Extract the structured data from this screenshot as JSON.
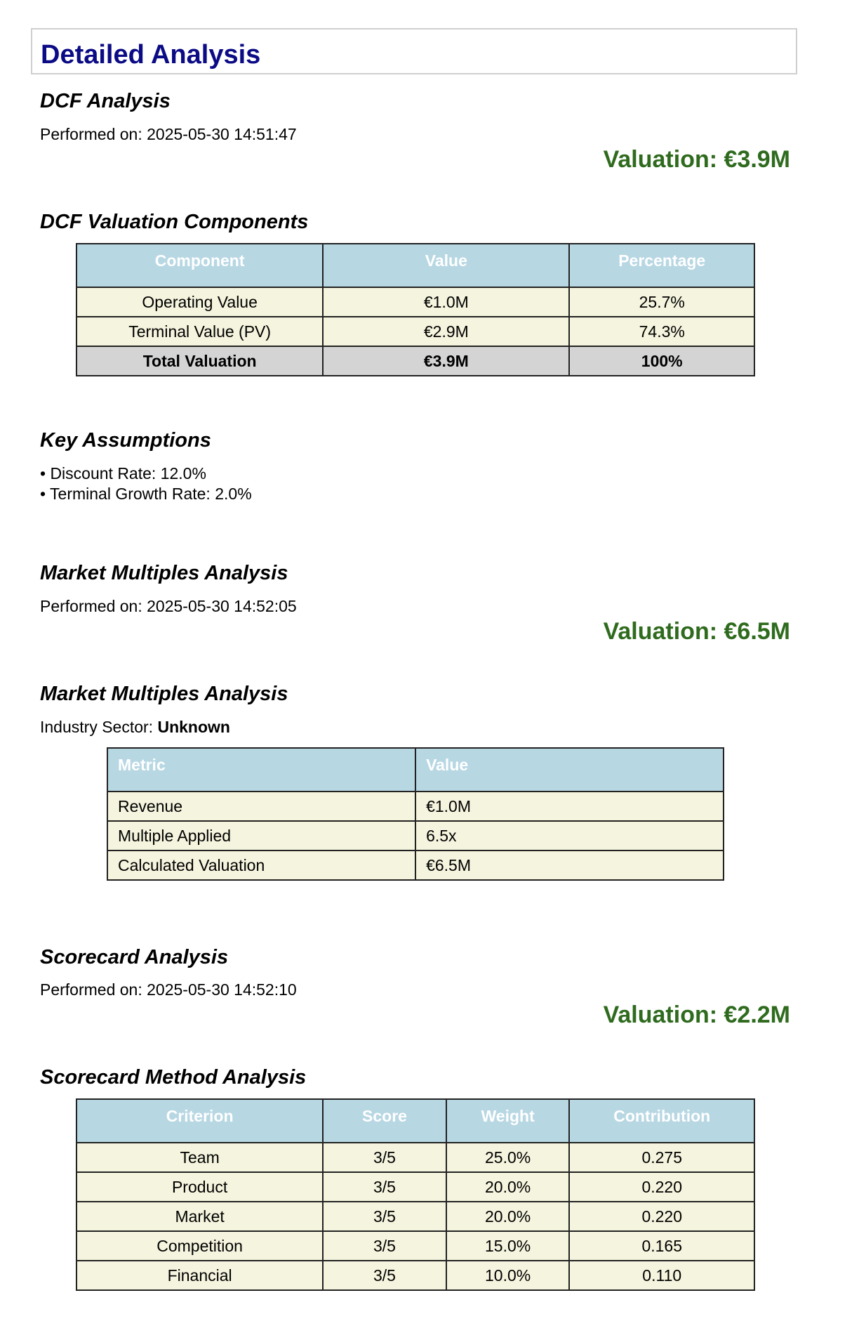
{
  "title": "Detailed Analysis",
  "dcf": {
    "heading": "DCF Analysis",
    "performed": "Performed on: 2025-05-30 14:51:47",
    "valuation": "Valuation: €3.9M",
    "components_heading": "DCF Valuation Components",
    "table": {
      "headers": [
        "Component",
        "Value",
        "Percentage"
      ],
      "rows": [
        [
          "Operating Value",
          "€1.0M",
          "25.7%"
        ],
        [
          "Terminal Value (PV)",
          "€2.9M",
          "74.3%"
        ]
      ],
      "total": [
        "Total Valuation",
        "€3.9M",
        "100%"
      ]
    },
    "assumptions_heading": "Key Assumptions",
    "assumptions": [
      "• Discount Rate: 12.0%",
      "• Terminal Growth Rate: 2.0%"
    ]
  },
  "multiples": {
    "heading": "Market Multiples Analysis",
    "performed": "Performed on: 2025-05-30 14:52:05",
    "valuation": "Valuation: €6.5M",
    "sub_heading": "Market Multiples Analysis",
    "sector_label": "Industry Sector: ",
    "sector_value": "Unknown",
    "table": {
      "headers": [
        "Metric",
        "Value"
      ],
      "rows": [
        [
          "Revenue",
          "€1.0M"
        ],
        [
          "Multiple Applied",
          "6.5x"
        ],
        [
          "Calculated Valuation",
          "€6.5M"
        ]
      ]
    }
  },
  "scorecard": {
    "heading": "Scorecard Analysis",
    "performed": "Performed on: 2025-05-30 14:52:10",
    "valuation": "Valuation: €2.2M",
    "method_heading": "Scorecard Method Analysis",
    "table": {
      "headers": [
        "Criterion",
        "Score",
        "Weight",
        "Contribution"
      ],
      "rows": [
        [
          "Team",
          "3/5",
          "25.0%",
          "0.275"
        ],
        [
          "Product",
          "3/5",
          "20.0%",
          "0.220"
        ],
        [
          "Market",
          "3/5",
          "20.0%",
          "0.220"
        ],
        [
          "Competition",
          "3/5",
          "15.0%",
          "0.165"
        ],
        [
          "Financial",
          "3/5",
          "10.0%",
          "0.110"
        ]
      ]
    }
  }
}
